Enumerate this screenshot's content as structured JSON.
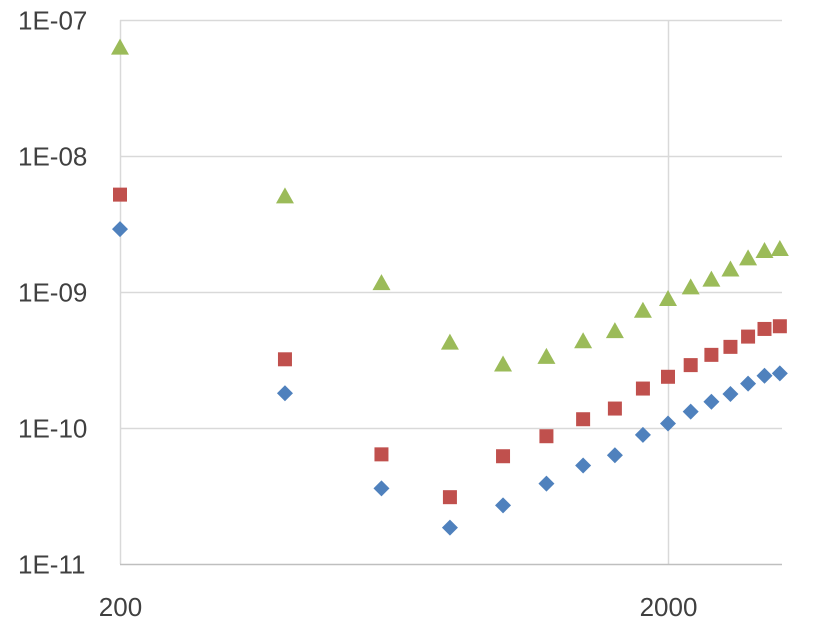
{
  "chart_data": {
    "type": "scatter",
    "title": "",
    "xlabel": "",
    "ylabel": "",
    "x_scale": "log",
    "y_scale": "log",
    "xlim": [
      200,
      3100
    ],
    "ylim": [
      1e-11,
      1e-07
    ],
    "grid": true,
    "x_ticks": [
      {
        "value": 200,
        "label": "200"
      },
      {
        "value": 2000,
        "label": "2000"
      }
    ],
    "y_ticks": [
      {
        "value": 1e-07,
        "label": "1E-07"
      },
      {
        "value": 1e-08,
        "label": "1E-08"
      },
      {
        "value": 1e-09,
        "label": "1E-09"
      },
      {
        "value": 1e-10,
        "label": "1E-10"
      },
      {
        "value": 1e-11,
        "label": "1E-11"
      }
    ],
    "series": [
      {
        "marker": "diamond",
        "color": "#4f81bd",
        "points": [
          {
            "x": 200,
            "y": 2.9e-09
          },
          {
            "x": 400,
            "y": 1.8e-10
          },
          {
            "x": 600,
            "y": 3.6e-11
          },
          {
            "x": 800,
            "y": 1.85e-11
          },
          {
            "x": 1000,
            "y": 2.7e-11
          },
          {
            "x": 1200,
            "y": 3.9e-11
          },
          {
            "x": 1400,
            "y": 5.3e-11
          },
          {
            "x": 1600,
            "y": 6.3e-11
          },
          {
            "x": 1800,
            "y": 8.9e-11
          },
          {
            "x": 2000,
            "y": 1.08e-10
          },
          {
            "x": 2200,
            "y": 1.32e-10
          },
          {
            "x": 2400,
            "y": 1.56e-10
          },
          {
            "x": 2600,
            "y": 1.78e-10
          },
          {
            "x": 2800,
            "y": 2.12e-10
          },
          {
            "x": 3000,
            "y": 2.42e-10
          },
          {
            "x": 3200,
            "y": 2.52e-10
          }
        ]
      },
      {
        "marker": "square",
        "color": "#c0504d",
        "points": [
          {
            "x": 200,
            "y": 5.2e-09
          },
          {
            "x": 400,
            "y": 3.2e-10
          },
          {
            "x": 600,
            "y": 6.4e-11
          },
          {
            "x": 800,
            "y": 3.1e-11
          },
          {
            "x": 1000,
            "y": 6.2e-11
          },
          {
            "x": 1200,
            "y": 8.7e-11
          },
          {
            "x": 1400,
            "y": 1.16e-10
          },
          {
            "x": 1600,
            "y": 1.39e-10
          },
          {
            "x": 1800,
            "y": 1.95e-10
          },
          {
            "x": 2000,
            "y": 2.38e-10
          },
          {
            "x": 2200,
            "y": 2.9e-10
          },
          {
            "x": 2400,
            "y": 3.45e-10
          },
          {
            "x": 2600,
            "y": 3.95e-10
          },
          {
            "x": 2800,
            "y": 4.7e-10
          },
          {
            "x": 3000,
            "y": 5.35e-10
          },
          {
            "x": 3200,
            "y": 5.6e-10
          }
        ]
      },
      {
        "marker": "triangle",
        "color": "#9bbb59",
        "points": [
          {
            "x": 200,
            "y": 6.2e-08
          },
          {
            "x": 400,
            "y": 5e-09
          },
          {
            "x": 600,
            "y": 1.15e-09
          },
          {
            "x": 800,
            "y": 4.2e-10
          },
          {
            "x": 1000,
            "y": 2.9e-10
          },
          {
            "x": 1200,
            "y": 3.3e-10
          },
          {
            "x": 1400,
            "y": 4.3e-10
          },
          {
            "x": 1600,
            "y": 5.1e-10
          },
          {
            "x": 1800,
            "y": 7.2e-10
          },
          {
            "x": 2000,
            "y": 8.8e-10
          },
          {
            "x": 2200,
            "y": 1.07e-09
          },
          {
            "x": 2400,
            "y": 1.22e-09
          },
          {
            "x": 2600,
            "y": 1.45e-09
          },
          {
            "x": 2800,
            "y": 1.75e-09
          },
          {
            "x": 3000,
            "y": 1.98e-09
          },
          {
            "x": 3200,
            "y": 2.05e-09
          }
        ]
      }
    ]
  }
}
